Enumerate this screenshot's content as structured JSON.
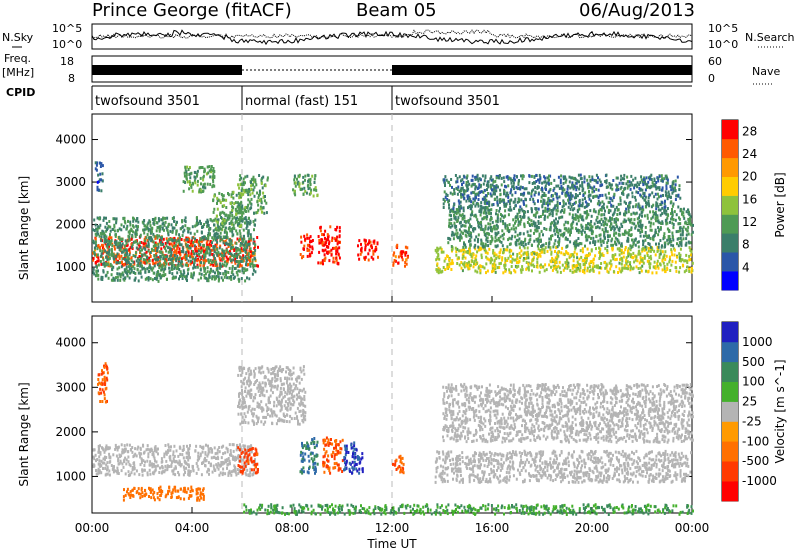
{
  "header": {
    "station": "Prince George (fitACF)",
    "beam": "Beam 05",
    "date": "06/Aug/2013"
  },
  "top_panels": {
    "nsky_label": "N.Sky",
    "nsearch_label": "N.Search",
    "noise_ticks": [
      "10^5",
      "10^0"
    ],
    "freq_label": "Freq.",
    "freq_unit": "[MHz]",
    "freq_ticks": [
      "18",
      "8"
    ],
    "nave_label": "Nave",
    "nave_ticks": [
      "60",
      "0"
    ],
    "cpid_label": "CPID",
    "cpid_segments": [
      {
        "label": "twofsound 3501",
        "start": "00:00",
        "end": "06:00"
      },
      {
        "label": "normal (fast) 151",
        "start": "06:00",
        "end": "12:00"
      },
      {
        "label": "twofsound 3501",
        "start": "12:00",
        "end": "24:00"
      }
    ]
  },
  "chart_data": [
    {
      "type": "heatmap",
      "name": "power",
      "ylabel": "Slant Range [km]",
      "xlabel": "Time UT",
      "x_ticks": [
        "00:00",
        "04:00",
        "08:00",
        "12:00",
        "16:00",
        "20:00",
        "00:00"
      ],
      "xlim_hours": [
        0,
        24
      ],
      "y_ticks": [
        "1000",
        "2000",
        "3000",
        "4000"
      ],
      "ylim": [
        180,
        4600
      ],
      "colorbar": {
        "label": "Power [dB]",
        "ticks": [
          "4",
          "8",
          "12",
          "16",
          "20",
          "24",
          "28"
        ],
        "range": [
          0,
          30
        ],
        "colors": [
          "#0000ff",
          "#2b56a8",
          "#3b7e6a",
          "#4f9a54",
          "#8ec23c",
          "#ffcc00",
          "#ff9900",
          "#ff5a00",
          "#ff0000"
        ]
      },
      "regions": [
        {
          "t0": 0.0,
          "t1": 6.6,
          "r0": 1050,
          "r1": 1750,
          "value": 26
        },
        {
          "t0": 0.0,
          "t1": 6.5,
          "r0": 700,
          "r1": 2200,
          "value": 10
        },
        {
          "t0": 0.1,
          "t1": 0.4,
          "r0": 2800,
          "r1": 3500,
          "value": 6
        },
        {
          "t0": 3.6,
          "t1": 4.9,
          "r0": 2800,
          "r1": 3400,
          "value": 12
        },
        {
          "t0": 4.8,
          "t1": 6.0,
          "r0": 1900,
          "r1": 2800,
          "value": 12
        },
        {
          "t0": 5.8,
          "t1": 7.0,
          "r0": 2300,
          "r1": 3200,
          "value": 12
        },
        {
          "t0": 8.0,
          "t1": 9.0,
          "r0": 2700,
          "r1": 3200,
          "value": 12
        },
        {
          "t0": 8.3,
          "t1": 8.8,
          "r0": 1250,
          "r1": 1800,
          "value": 28
        },
        {
          "t0": 9.0,
          "t1": 9.9,
          "r0": 1100,
          "r1": 2000,
          "value": 28
        },
        {
          "t0": 10.6,
          "t1": 11.4,
          "r0": 1200,
          "r1": 1700,
          "value": 28
        },
        {
          "t0": 12.0,
          "t1": 12.6,
          "r0": 1050,
          "r1": 1550,
          "value": 26
        },
        {
          "t0": 13.7,
          "t1": 24.0,
          "r0": 900,
          "r1": 1500,
          "value": 16
        },
        {
          "t0": 14.2,
          "t1": 24.0,
          "r0": 1500,
          "r1": 2400,
          "value": 10
        },
        {
          "t0": 14.0,
          "t1": 23.5,
          "r0": 2400,
          "r1": 3200,
          "value": 8
        }
      ]
    },
    {
      "type": "heatmap",
      "name": "velocity",
      "ylabel": "Slant Range [km]",
      "xlabel": "Time UT",
      "x_ticks": [
        "00:00",
        "04:00",
        "08:00",
        "12:00",
        "16:00",
        "20:00",
        "00:00"
      ],
      "xlim_hours": [
        0,
        24
      ],
      "y_ticks": [
        "1000",
        "2000",
        "3000",
        "4000"
      ],
      "ylim": [
        180,
        4600
      ],
      "colorbar": {
        "label": "Velocity [m s^-1]",
        "ticks": [
          "1000",
          "500",
          "100",
          "25",
          "-25",
          "-100",
          "-500",
          "-1000"
        ],
        "colors": [
          "#2020c0",
          "#2e6aa8",
          "#3a8a5a",
          "#44b02c",
          "#b4b4b4",
          "#ff9a00",
          "#ff7000",
          "#ff3a00",
          "#ff0000"
        ]
      },
      "regions": [
        {
          "t0": 0.0,
          "t1": 6.5,
          "r0": 1050,
          "r1": 1750,
          "value": 0
        },
        {
          "t0": 0.2,
          "t1": 0.6,
          "r0": 2700,
          "r1": 3600,
          "value": -300
        },
        {
          "t0": 1.2,
          "t1": 4.5,
          "r0": 500,
          "r1": 800,
          "value": -150
        },
        {
          "t0": 5.8,
          "t1": 6.6,
          "r0": 1100,
          "r1": 1700,
          "value": -500
        },
        {
          "t0": 5.8,
          "t1": 8.5,
          "r0": 2200,
          "r1": 3500,
          "value": 0
        },
        {
          "t0": 8.3,
          "t1": 9.0,
          "r0": 1100,
          "r1": 1900,
          "value": 300
        },
        {
          "t0": 9.2,
          "t1": 10.0,
          "r0": 1100,
          "r1": 1900,
          "value": -300
        },
        {
          "t0": 10.0,
          "t1": 10.8,
          "r0": 1100,
          "r1": 1800,
          "value": 800
        },
        {
          "t0": 12.0,
          "t1": 12.5,
          "r0": 1100,
          "r1": 1500,
          "value": -300
        },
        {
          "t0": 13.7,
          "t1": 24.0,
          "r0": 900,
          "r1": 1600,
          "value": 0
        },
        {
          "t0": 14.0,
          "t1": 24.0,
          "r0": 1800,
          "r1": 3100,
          "value": 0
        },
        {
          "t0": 6.0,
          "t1": 24.0,
          "r0": 180,
          "r1": 400,
          "value": 60
        }
      ]
    }
  ]
}
